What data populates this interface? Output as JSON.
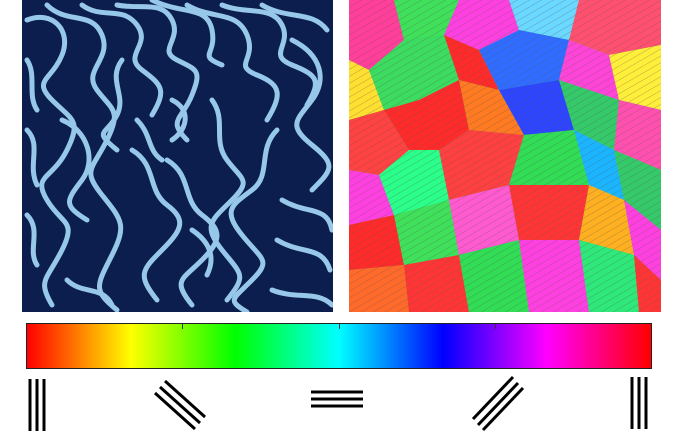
{
  "panels": {
    "left": {
      "pattern": "labyrinthine-stripes",
      "colors": {
        "background": "#0b1e4d",
        "stripe": "#9fd2f2"
      }
    },
    "right": {
      "pattern": "orientation-domains"
    }
  },
  "colorbar": {
    "stops": [
      "#ff0000",
      "#ffff00",
      "#00ff00",
      "#00ffff",
      "#0000ff",
      "#ff00ff",
      "#ff0000"
    ]
  },
  "orientation_markers": [
    {
      "icon": "vertical-stripes-icon",
      "angle_deg": 90
    },
    {
      "icon": "diagonal-stripes-icon",
      "angle_deg": 135
    },
    {
      "icon": "horizontal-stripes-icon",
      "angle_deg": 0
    },
    {
      "icon": "diagonal-stripes-icon",
      "angle_deg": 45
    },
    {
      "icon": "vertical-stripes-icon",
      "angle_deg": 90
    }
  ]
}
